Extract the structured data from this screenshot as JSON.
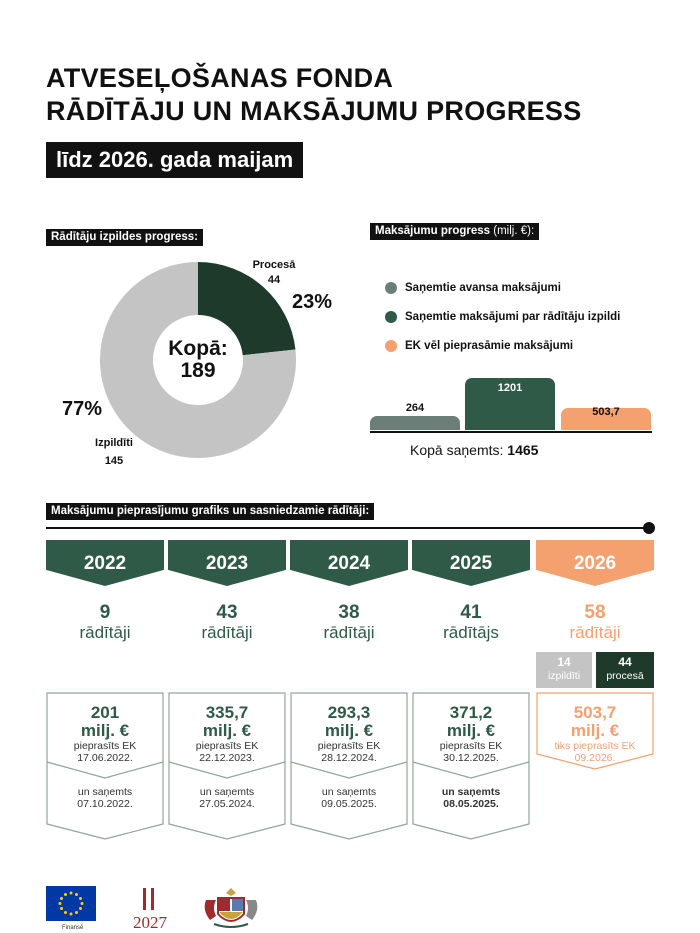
{
  "title": {
    "line1": "ATVESEĻOŠANAS FONDA",
    "line2": "RĀDĪTĀJU UN MAKSĀJUMU PROGRESS",
    "subtitle": "līdz 2026. gada maijam"
  },
  "indicators": {
    "label": "Rādītāju izpildes progress:",
    "total_label": "Kopā:",
    "total_value": "189",
    "in_progress": {
      "label": "Procesā",
      "value": "44",
      "percent": "23%",
      "fraction": 0.233,
      "color": "#1e3a2b"
    },
    "completed": {
      "label": "Izpildīti",
      "value": "145",
      "percent": "77%",
      "fraction": 0.767,
      "color": "#c4c4c4"
    }
  },
  "payments": {
    "label": "Maksājumu progress",
    "label_unit": "(milj. €):",
    "legend": [
      {
        "label": "Saņemtie avansa maksājumi",
        "color": "#6b7f78"
      },
      {
        "label": "Saņemtie maksājumi par rādītāju izpildi",
        "color": "#2f5a48"
      },
      {
        "label": "EK vēl pieprasāmie maksājumi",
        "color": "#f4a06f"
      }
    ],
    "bars": [
      {
        "value": 264,
        "label": "264",
        "color": "#6b7f78",
        "text_color": "#111111"
      },
      {
        "value": 1201,
        "label": "1201",
        "color": "#2f5a48",
        "text_color": "#ffffff"
      },
      {
        "value": 503.7,
        "label": "503,7",
        "color": "#f4a06f",
        "text_color": "#111111"
      }
    ],
    "total_label": "Kopā saņemts:",
    "total_value": "1465"
  },
  "schedule": {
    "label": "Maksājumu pieprasījumu grafiks un sasniedzamie rādītāji:",
    "years": [
      {
        "year": "2022",
        "count": "9",
        "unit": "rādītāji",
        "amount": "201",
        "amount_unit": "milj. €",
        "req_label": "pieprasīts EK",
        "req_date": "17.06.2022.",
        "recv_label": "un saņemts",
        "recv_date": "07.10.2022.",
        "future": false,
        "recv_bold": false
      },
      {
        "year": "2023",
        "count": "43",
        "unit": "rādītāji",
        "amount": "335,7",
        "amount_unit": "milj. €",
        "req_label": "pieprasīts EK",
        "req_date": "22.12.2023.",
        "recv_label": "un saņemts",
        "recv_date": "27.05.2024.",
        "future": false,
        "recv_bold": false
      },
      {
        "year": "2024",
        "count": "38",
        "unit": "rādītāji",
        "amount": "293,3",
        "amount_unit": "milj. €",
        "req_label": "pieprasīts EK",
        "req_date": "28.12.2024.",
        "recv_label": "un saņemts",
        "recv_date": "09.05.2025.",
        "future": false,
        "recv_bold": false
      },
      {
        "year": "2025",
        "count": "41",
        "unit": "rādītājs",
        "amount": "371,2",
        "amount_unit": "milj. €",
        "req_label": "pieprasīts EK",
        "req_date": "30.12.2025.",
        "recv_label": "un saņemts",
        "recv_date": "08.05.2025.",
        "future": false,
        "recv_bold": true
      },
      {
        "year": "2026",
        "count": "58",
        "unit": "rādītāji",
        "amount": "503,7",
        "amount_unit": "milj. €",
        "req_label": "tiks pieprasīts EK",
        "req_date": "09.2026.",
        "recv_label": "",
        "recv_date": "",
        "future": true,
        "recv_bold": false
      }
    ],
    "split_2026": {
      "completed": {
        "value": "14",
        "label": "izpildīti",
        "color": "#c4c4c4"
      },
      "in_progress": {
        "value": "44",
        "label": "procesā",
        "color": "#1e3a2b"
      }
    },
    "colors": {
      "past": "#2f5a48",
      "future": "#f4a06f",
      "card_border": "#8fa69a"
    }
  },
  "footer": {
    "eu_caption": "Finansē"
  }
}
